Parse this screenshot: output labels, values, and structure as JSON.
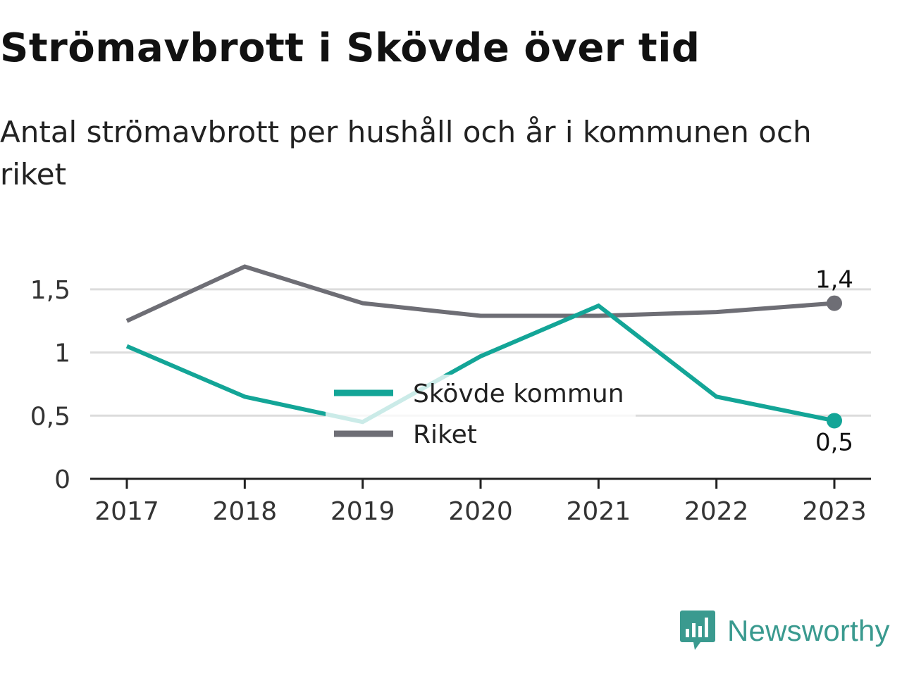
{
  "title": "Strömavbrott i Skövde över tid",
  "subtitle": "Antal strömavbrott per hushåll och år i kommunen och riket",
  "brand": "Newsworthy",
  "chart_data": {
    "type": "line",
    "x": [
      "2017",
      "2018",
      "2019",
      "2020",
      "2021",
      "2022",
      "2023"
    ],
    "ylim": [
      0,
      1.75
    ],
    "yticks": [
      0,
      0.5,
      1,
      1.5
    ],
    "ytick_labels": [
      "0",
      "0,5",
      "1",
      "1,5"
    ],
    "grid": true,
    "legend_position": "center",
    "series": [
      {
        "name": "Skövde kommun",
        "color": "#13a597",
        "values": [
          1.05,
          0.65,
          0.45,
          0.97,
          1.37,
          0.65,
          0.46
        ],
        "end_label": "0,5",
        "end_label_position": "below"
      },
      {
        "name": "Riket",
        "color": "#6e6e75",
        "values": [
          1.25,
          1.68,
          1.39,
          1.29,
          1.29,
          1.32,
          1.39
        ],
        "end_label": "1,4",
        "end_label_position": "above"
      }
    ]
  }
}
